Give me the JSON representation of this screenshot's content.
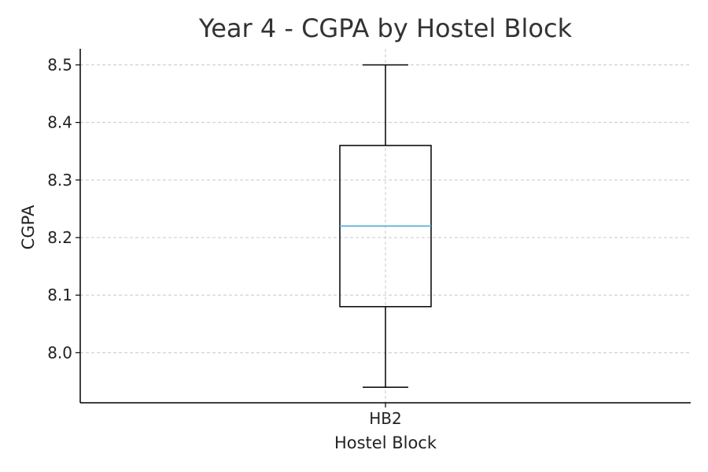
{
  "chart_data": {
    "type": "box",
    "title": "Year 4 - CGPA by Hostel Block",
    "xlabel": "Hostel Block",
    "ylabel": "CGPA",
    "categories": [
      "HB2"
    ],
    "boxes": [
      {
        "category": "HB2",
        "whisker_low": 7.94,
        "q1": 8.08,
        "median": 8.22,
        "q3": 8.36,
        "whisker_high": 8.5
      }
    ],
    "yticks": [
      "8.0",
      "8.1",
      "8.2",
      "8.3",
      "8.4",
      "8.5"
    ],
    "ylim": [
      7.913,
      8.528
    ],
    "grid": true,
    "colors": {
      "box": "#000000",
      "median": "#5aaee0",
      "grid": "#c8c8c8",
      "axis": "#000000"
    }
  }
}
